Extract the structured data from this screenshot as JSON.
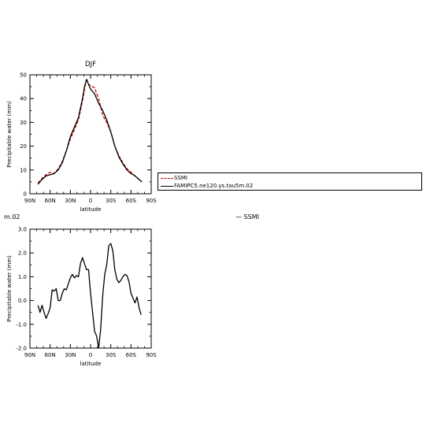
{
  "chart_data": [
    {
      "type": "line",
      "title": "DJF",
      "xlabel": "latitude",
      "ylabel": "Precipitable water (mm)",
      "xlim": [
        90,
        -90
      ],
      "ylim": [
        0,
        50
      ],
      "x_ticks": [
        "90N",
        "60N",
        "30N",
        "0",
        "30S",
        "60S",
        "90S"
      ],
      "x_tick_values": [
        90,
        60,
        30,
        0,
        -30,
        -60,
        -90
      ],
      "y_ticks": [
        "0",
        "10",
        "20",
        "30",
        "40",
        "50"
      ],
      "y_tick_values": [
        0,
        10,
        20,
        30,
        40,
        50
      ],
      "series": [
        {
          "name": "SSMI",
          "color": "#cc0000",
          "dash": "dashed",
          "x": [
            78,
            72,
            66,
            60,
            54,
            48,
            42,
            36,
            30,
            24,
            18,
            12,
            9,
            6,
            3,
            0,
            -6,
            -12,
            -18,
            -24,
            -30,
            -36,
            -42,
            -48,
            -54,
            -60,
            -66,
            -72,
            -76
          ],
          "y": [
            4.5,
            6.5,
            8,
            9,
            8.5,
            10.5,
            13.5,
            18,
            23,
            27,
            31,
            39,
            44,
            48.5,
            46,
            45.5,
            44.5,
            40,
            33,
            30,
            26,
            20,
            16,
            13,
            10.5,
            9,
            7.5,
            6,
            5
          ]
        },
        {
          "name": "FAMIPC5.ne120.ys.tau5m.02",
          "color": "#000000",
          "dash": "solid",
          "x": [
            78,
            72,
            66,
            60,
            54,
            48,
            42,
            36,
            30,
            24,
            18,
            12,
            9,
            6,
            3,
            0,
            -6,
            -12,
            -18,
            -24,
            -30,
            -36,
            -42,
            -48,
            -54,
            -60,
            -66,
            -72,
            -76
          ],
          "y": [
            4,
            6,
            7.5,
            8,
            8.5,
            10,
            13,
            18,
            24,
            28,
            32,
            40,
            45,
            48,
            46,
            44,
            42,
            38,
            35,
            31,
            26,
            20,
            15.5,
            12.5,
            10,
            8.5,
            7.5,
            6,
            5
          ]
        }
      ],
      "legend": "right",
      "grid": false
    },
    {
      "type": "line",
      "title": "",
      "xlabel": "latitude",
      "ylabel": "Precipitable water (mm)",
      "xlim": [
        90,
        -90
      ],
      "ylim": [
        -2.0,
        3.0
      ],
      "x_ticks": [
        "90N",
        "60N",
        "30N",
        "0",
        "30S",
        "60S",
        "90S"
      ],
      "x_tick_values": [
        90,
        60,
        30,
        0,
        -30,
        -60,
        -90
      ],
      "y_ticks": [
        "-2.0",
        "-1.0",
        "0.0",
        "1.0",
        "2.0",
        "3.0"
      ],
      "y_tick_values": [
        -2,
        -1,
        0,
        1,
        2,
        3
      ],
      "series": [
        {
          "color": "#000000",
          "dash": "solid",
          "x": [
            78,
            75,
            72,
            69,
            66,
            63,
            60,
            57,
            54,
            51,
            48,
            45,
            42,
            39,
            36,
            33,
            30,
            27,
            24,
            21,
            18,
            15,
            12,
            9,
            6,
            3,
            0,
            -3,
            -6,
            -9,
            -12,
            -15,
            -18,
            -21,
            -24,
            -27,
            -30,
            -33,
            -36,
            -39,
            -42,
            -45,
            -48,
            -51,
            -54,
            -57,
            -60,
            -63,
            -66,
            -69,
            -72,
            -75
          ],
          "y": [
            -0.2,
            -0.5,
            -0.2,
            -0.5,
            -0.75,
            -0.55,
            -0.3,
            0.45,
            0.4,
            0.5,
            0.0,
            0.0,
            0.3,
            0.5,
            0.45,
            0.7,
            0.95,
            1.1,
            0.95,
            1.05,
            1.0,
            1.55,
            1.8,
            1.55,
            1.3,
            1.3,
            0.3,
            -0.5,
            -1.3,
            -1.5,
            -2.0,
            -1.2,
            0.2,
            1.1,
            1.5,
            2.3,
            2.4,
            2.1,
            1.3,
            0.9,
            0.75,
            0.85,
            1.0,
            1.1,
            1.05,
            0.8,
            0.3,
            0.1,
            -0.1,
            0.15,
            -0.3,
            -0.6
          ]
        }
      ]
    }
  ],
  "overlap_text": {
    "left_fragment": "m.02",
    "right_fragment": "— SSMI"
  }
}
